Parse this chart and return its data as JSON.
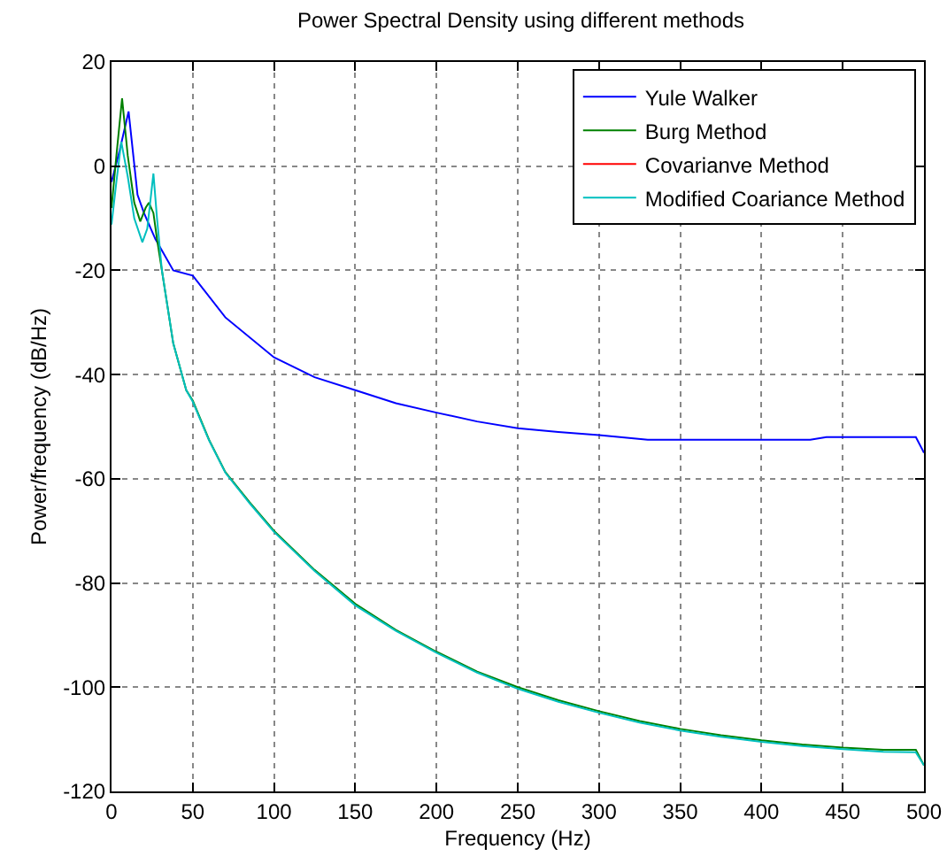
{
  "chart_data": {
    "type": "line",
    "title": "Power Spectral Density using different methods",
    "xlabel": "Frequency (Hz)",
    "ylabel": "Power/frequency (dB/Hz)",
    "xlim": [
      0,
      500
    ],
    "xticks": [
      0,
      50,
      100,
      150,
      200,
      250,
      300,
      350,
      400,
      450,
      500
    ],
    "ylim": [
      -120,
      20
    ],
    "yticks": [
      -120,
      -100,
      -80,
      -60,
      -40,
      -20,
      0,
      20
    ],
    "grid": true,
    "legend": "top right",
    "line_style": "solid",
    "marker": "none",
    "series": [
      {
        "name": "Yule Walker",
        "color": "#0000ff",
        "x": [
          0,
          5,
          10.5,
          16,
          20,
          27,
          38,
          50,
          70,
          100,
          125,
          150,
          175,
          200,
          225,
          250,
          275,
          300,
          330,
          380,
          430,
          440,
          470,
          495,
          500
        ],
        "values": [
          -3,
          3,
          10.5,
          -5.5,
          -9,
          -14,
          -20,
          -21,
          -29,
          -36.7,
          -40.5,
          -43,
          -45.5,
          -47.3,
          -49,
          -50.3,
          -51,
          -51.6,
          -52.5,
          -52.5,
          -52.5,
          -52,
          -52,
          -52,
          -55
        ]
      },
      {
        "name": "Burg Method",
        "color": "#008000",
        "x": [
          0,
          3,
          6.5,
          10,
          14,
          17.7,
          21,
          23,
          25.8,
          28,
          31,
          38,
          46,
          50,
          60,
          70,
          85,
          100,
          125,
          150,
          175,
          200,
          225,
          250,
          275,
          300,
          325,
          350,
          375,
          400,
          425,
          450,
          475,
          495,
          500
        ],
        "values": [
          -8,
          2,
          13,
          2,
          -7,
          -10.6,
          -8,
          -7,
          -9,
          -14,
          -20,
          -34,
          -43,
          -45,
          -52.5,
          -58.7,
          -64.5,
          -70,
          -77.5,
          -84,
          -89,
          -93.2,
          -97,
          -100,
          -102.5,
          -104.6,
          -106.5,
          -108,
          -109.2,
          -110.2,
          -111,
          -111.6,
          -112,
          -112,
          -115
        ]
      },
      {
        "name": "Covarianve Method",
        "color": "#ff0000",
        "values": [
          null
        ]
      },
      {
        "name": "Modified Coariance Method",
        "color": "#00bfbf",
        "x": [
          0,
          3,
          6,
          10,
          14,
          19,
          22,
          25.8,
          28,
          31,
          38,
          46,
          50,
          60,
          70,
          85,
          100,
          125,
          150,
          175,
          200,
          225,
          250,
          275,
          300,
          325,
          350,
          375,
          400,
          425,
          450,
          475,
          495,
          500
        ],
        "values": [
          -11.2,
          -3,
          4.7,
          -2,
          -10,
          -14.6,
          -12,
          -1.4,
          -10,
          -20,
          -34,
          -43,
          -45.2,
          -52.6,
          -58.8,
          -64.7,
          -70.2,
          -77.7,
          -84.3,
          -89.2,
          -93.4,
          -97.2,
          -100.3,
          -102.8,
          -104.9,
          -106.8,
          -108.3,
          -109.5,
          -110.5,
          -111.3,
          -111.9,
          -112.4,
          -112.5,
          -115
        ]
      }
    ]
  }
}
